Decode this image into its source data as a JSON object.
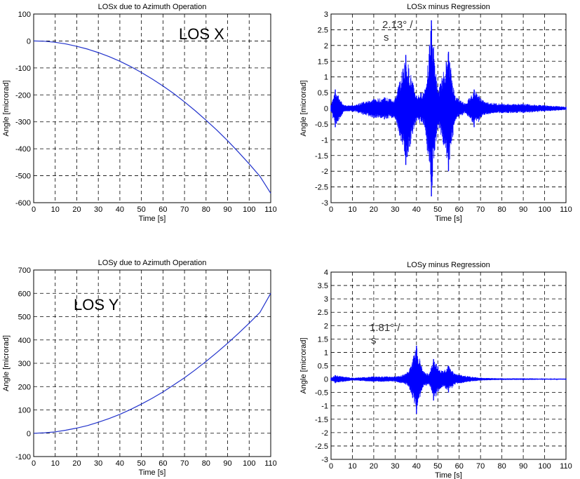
{
  "chart_data": [
    {
      "id": "losx",
      "type": "line",
      "title": "LOSx due to Azimuth Operation",
      "xlabel": "Time [s]",
      "ylabel": "Angle [microrad]",
      "xlim": [
        0,
        110
      ],
      "ylim": [
        -600,
        100
      ],
      "xticks": [
        0,
        10,
        20,
        30,
        40,
        50,
        60,
        70,
        80,
        90,
        100,
        110
      ],
      "yticks": [
        100,
        0,
        -100,
        -200,
        -300,
        -400,
        -500,
        -600
      ],
      "grid": true,
      "color": "#2233cc",
      "annotation": "LOS X",
      "series": [
        {
          "x": [
            0,
            5,
            10,
            15,
            20,
            25,
            30,
            35,
            40,
            45,
            50,
            55,
            60,
            65,
            70,
            75,
            80,
            85,
            90,
            95,
            100,
            105,
            110
          ],
          "values": [
            0,
            -1,
            -5,
            -11,
            -20,
            -30,
            -43,
            -58,
            -75,
            -95,
            -117,
            -141,
            -167,
            -195,
            -226,
            -259,
            -294,
            -331,
            -370,
            -412,
            -456,
            -502,
            -565
          ]
        }
      ]
    },
    {
      "id": "losx_res",
      "type": "line",
      "title": "LOSx minus Regression",
      "xlabel": "Time [s]",
      "ylabel": "Angle [microrad]",
      "xlim": [
        0,
        110
      ],
      "ylim": [
        -3,
        3
      ],
      "xticks": [
        0,
        10,
        20,
        30,
        40,
        50,
        60,
        70,
        80,
        90,
        100,
        110
      ],
      "yticks": [
        3,
        2.5,
        2,
        1.5,
        1,
        0.5,
        0,
        -0.5,
        -1,
        -1.5,
        -2,
        -2.5,
        -3
      ],
      "grid": true,
      "color": "#0000ff",
      "annotation_line1": "2.13° /",
      "annotation_line2": "s",
      "series": [
        {
          "peaks_pos": [
            [
              0,
              0.1
            ],
            [
              2,
              0.6
            ],
            [
              6,
              0.1
            ],
            [
              10,
              0.1
            ],
            [
              15,
              0.2
            ],
            [
              20,
              0.3
            ],
            [
              25,
              0.35
            ],
            [
              30,
              0.3
            ],
            [
              35,
              1.7
            ],
            [
              40,
              0.4
            ],
            [
              44,
              0.6
            ],
            [
              47,
              2.8
            ],
            [
              50,
              0.5
            ],
            [
              55,
              1.8
            ],
            [
              58,
              0.4
            ],
            [
              63,
              0.15
            ],
            [
              67,
              0.6
            ],
            [
              72,
              0.2
            ],
            [
              80,
              0.15
            ],
            [
              90,
              0.15
            ],
            [
              100,
              0.1
            ],
            [
              110,
              0.05
            ]
          ],
          "peaks_neg": [
            [
              0,
              -0.1
            ],
            [
              2,
              -0.6
            ],
            [
              6,
              -0.1
            ],
            [
              10,
              -0.1
            ],
            [
              15,
              -0.2
            ],
            [
              20,
              -0.3
            ],
            [
              25,
              -0.35
            ],
            [
              30,
              -0.3
            ],
            [
              35,
              -1.8
            ],
            [
              40,
              -0.4
            ],
            [
              44,
              -0.6
            ],
            [
              47,
              -2.8
            ],
            [
              50,
              -0.5
            ],
            [
              55,
              -2.0
            ],
            [
              58,
              -0.4
            ],
            [
              63,
              -0.15
            ],
            [
              67,
              -0.6
            ],
            [
              72,
              -0.2
            ],
            [
              80,
              -0.15
            ],
            [
              90,
              -0.15
            ],
            [
              100,
              -0.1
            ],
            [
              110,
              -0.05
            ]
          ]
        }
      ]
    },
    {
      "id": "losy",
      "type": "line",
      "title": "LOSy due to Azimuth Operation",
      "xlabel": "Time [s]",
      "ylabel": "Angle [microrad]",
      "xlim": [
        0,
        110
      ],
      "ylim": [
        -100,
        700
      ],
      "xticks": [
        0,
        10,
        20,
        30,
        40,
        50,
        60,
        70,
        80,
        90,
        100,
        110
      ],
      "yticks": [
        700,
        600,
        500,
        400,
        300,
        200,
        100,
        0,
        -100
      ],
      "grid": true,
      "color": "#2233cc",
      "annotation": "LOS Y",
      "series": [
        {
          "x": [
            0,
            5,
            10,
            15,
            20,
            25,
            30,
            35,
            40,
            45,
            50,
            55,
            60,
            65,
            70,
            75,
            80,
            85,
            90,
            95,
            100,
            105,
            110
          ],
          "values": [
            0,
            2,
            6,
            13,
            22,
            33,
            47,
            63,
            81,
            102,
            125,
            150,
            177,
            207,
            238,
            272,
            308,
            346,
            386,
            428,
            472,
            518,
            600
          ]
        }
      ]
    },
    {
      "id": "losy_res",
      "type": "line",
      "title": "LOSy minus Regression",
      "xlabel": "Time [s]",
      "ylabel": "Angle [microrad]",
      "xlim": [
        0,
        110
      ],
      "ylim": [
        -3,
        4
      ],
      "xticks": [
        0,
        10,
        20,
        30,
        40,
        50,
        60,
        70,
        80,
        90,
        100,
        110
      ],
      "yticks": [
        4,
        3.5,
        3,
        2.5,
        2,
        1.5,
        1,
        0.5,
        0,
        -0.5,
        -1,
        -1.5,
        -2,
        -2.5,
        -3
      ],
      "grid": true,
      "color": "#0000ff",
      "annotation_line1": "1.81° /",
      "annotation_line2": "s",
      "series": [
        {
          "peaks_pos": [
            [
              0,
              0.05
            ],
            [
              2,
              0.15
            ],
            [
              10,
              0.05
            ],
            [
              20,
              0.1
            ],
            [
              30,
              0.1
            ],
            [
              35,
              0.2
            ],
            [
              37,
              0.4
            ],
            [
              40,
              1.25
            ],
            [
              43,
              0.3
            ],
            [
              46,
              0.2
            ],
            [
              48,
              0.75
            ],
            [
              52,
              0.3
            ],
            [
              55,
              0.5
            ],
            [
              58,
              0.2
            ],
            [
              65,
              0.1
            ],
            [
              70,
              0.05
            ],
            [
              80,
              0.03
            ],
            [
              90,
              0.03
            ],
            [
              100,
              0.02
            ],
            [
              110,
              0.02
            ]
          ],
          "peaks_neg": [
            [
              0,
              -0.05
            ],
            [
              2,
              -0.15
            ],
            [
              10,
              -0.05
            ],
            [
              20,
              -0.1
            ],
            [
              30,
              -0.1
            ],
            [
              35,
              -0.2
            ],
            [
              37,
              -0.4
            ],
            [
              40,
              -1.3
            ],
            [
              43,
              -0.3
            ],
            [
              46,
              -0.2
            ],
            [
              48,
              -0.8
            ],
            [
              52,
              -0.3
            ],
            [
              55,
              -0.5
            ],
            [
              58,
              -0.2
            ],
            [
              65,
              -0.1
            ],
            [
              70,
              -0.05
            ],
            [
              80,
              -0.03
            ],
            [
              90,
              -0.03
            ],
            [
              100,
              -0.02
            ],
            [
              110,
              -0.02
            ]
          ]
        }
      ]
    }
  ]
}
